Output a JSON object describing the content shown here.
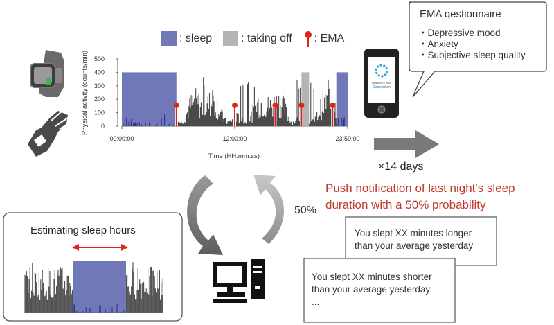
{
  "legend": {
    "sleep_label": ": sleep",
    "taking_off_label": ": taking off",
    "ema_label": ": EMA"
  },
  "colors": {
    "sleep": "#7178b8",
    "taking_off": "#b4b4b4",
    "activity": "#4a4a4a",
    "ema": "#e0241c",
    "accent_text": "#c0392b"
  },
  "chart_data": {
    "type": "bar",
    "title": "",
    "ylabel": "Physical activity (counts/min)",
    "xlabel": "Time (HH:mm:ss)",
    "ylim": [
      0,
      500
    ],
    "y_ticks": [
      0,
      100,
      200,
      300,
      400,
      500
    ],
    "x_ticks": [
      "00:00:00",
      "12:00:00",
      "23:59:00"
    ],
    "sleep_periods": [
      {
        "start_hour": 0.0,
        "end_hour": 5.8,
        "level": 400
      },
      {
        "start_hour": 22.8,
        "end_hour": 24.0,
        "level": 400
      }
    ],
    "taking_off_periods": [
      {
        "start_hour": 19.1,
        "end_hour": 19.9,
        "level": 400
      }
    ],
    "ema_hours": [
      5.8,
      12.0,
      16.3,
      19.1,
      22.4
    ],
    "ema_marker_value": 150
  },
  "ema_box": {
    "title": "EMA qestionnaire",
    "items": [
      "・Depressive mood",
      "・Anxiety",
      "・Subjective sleep quality"
    ]
  },
  "phone": {
    "app_name_line1": "Healthcare Tech",
    "app_name_line2": "Consortium"
  },
  "duration_label": "×14 days",
  "push_notification": {
    "line1": "Push notification of last night's sleep",
    "line2": "duration with a 50% probability"
  },
  "probability_label": "50%",
  "estimating": {
    "title": "Estimating sleep hours"
  },
  "messages": {
    "longer_line1": "You slept XX minutes longer",
    "longer_line2": "than your average yesterday",
    "shorter_line1": "You slept XX minutes shorter",
    "shorter_line2": "than your average yesterday",
    "shorter_line3": "..."
  }
}
